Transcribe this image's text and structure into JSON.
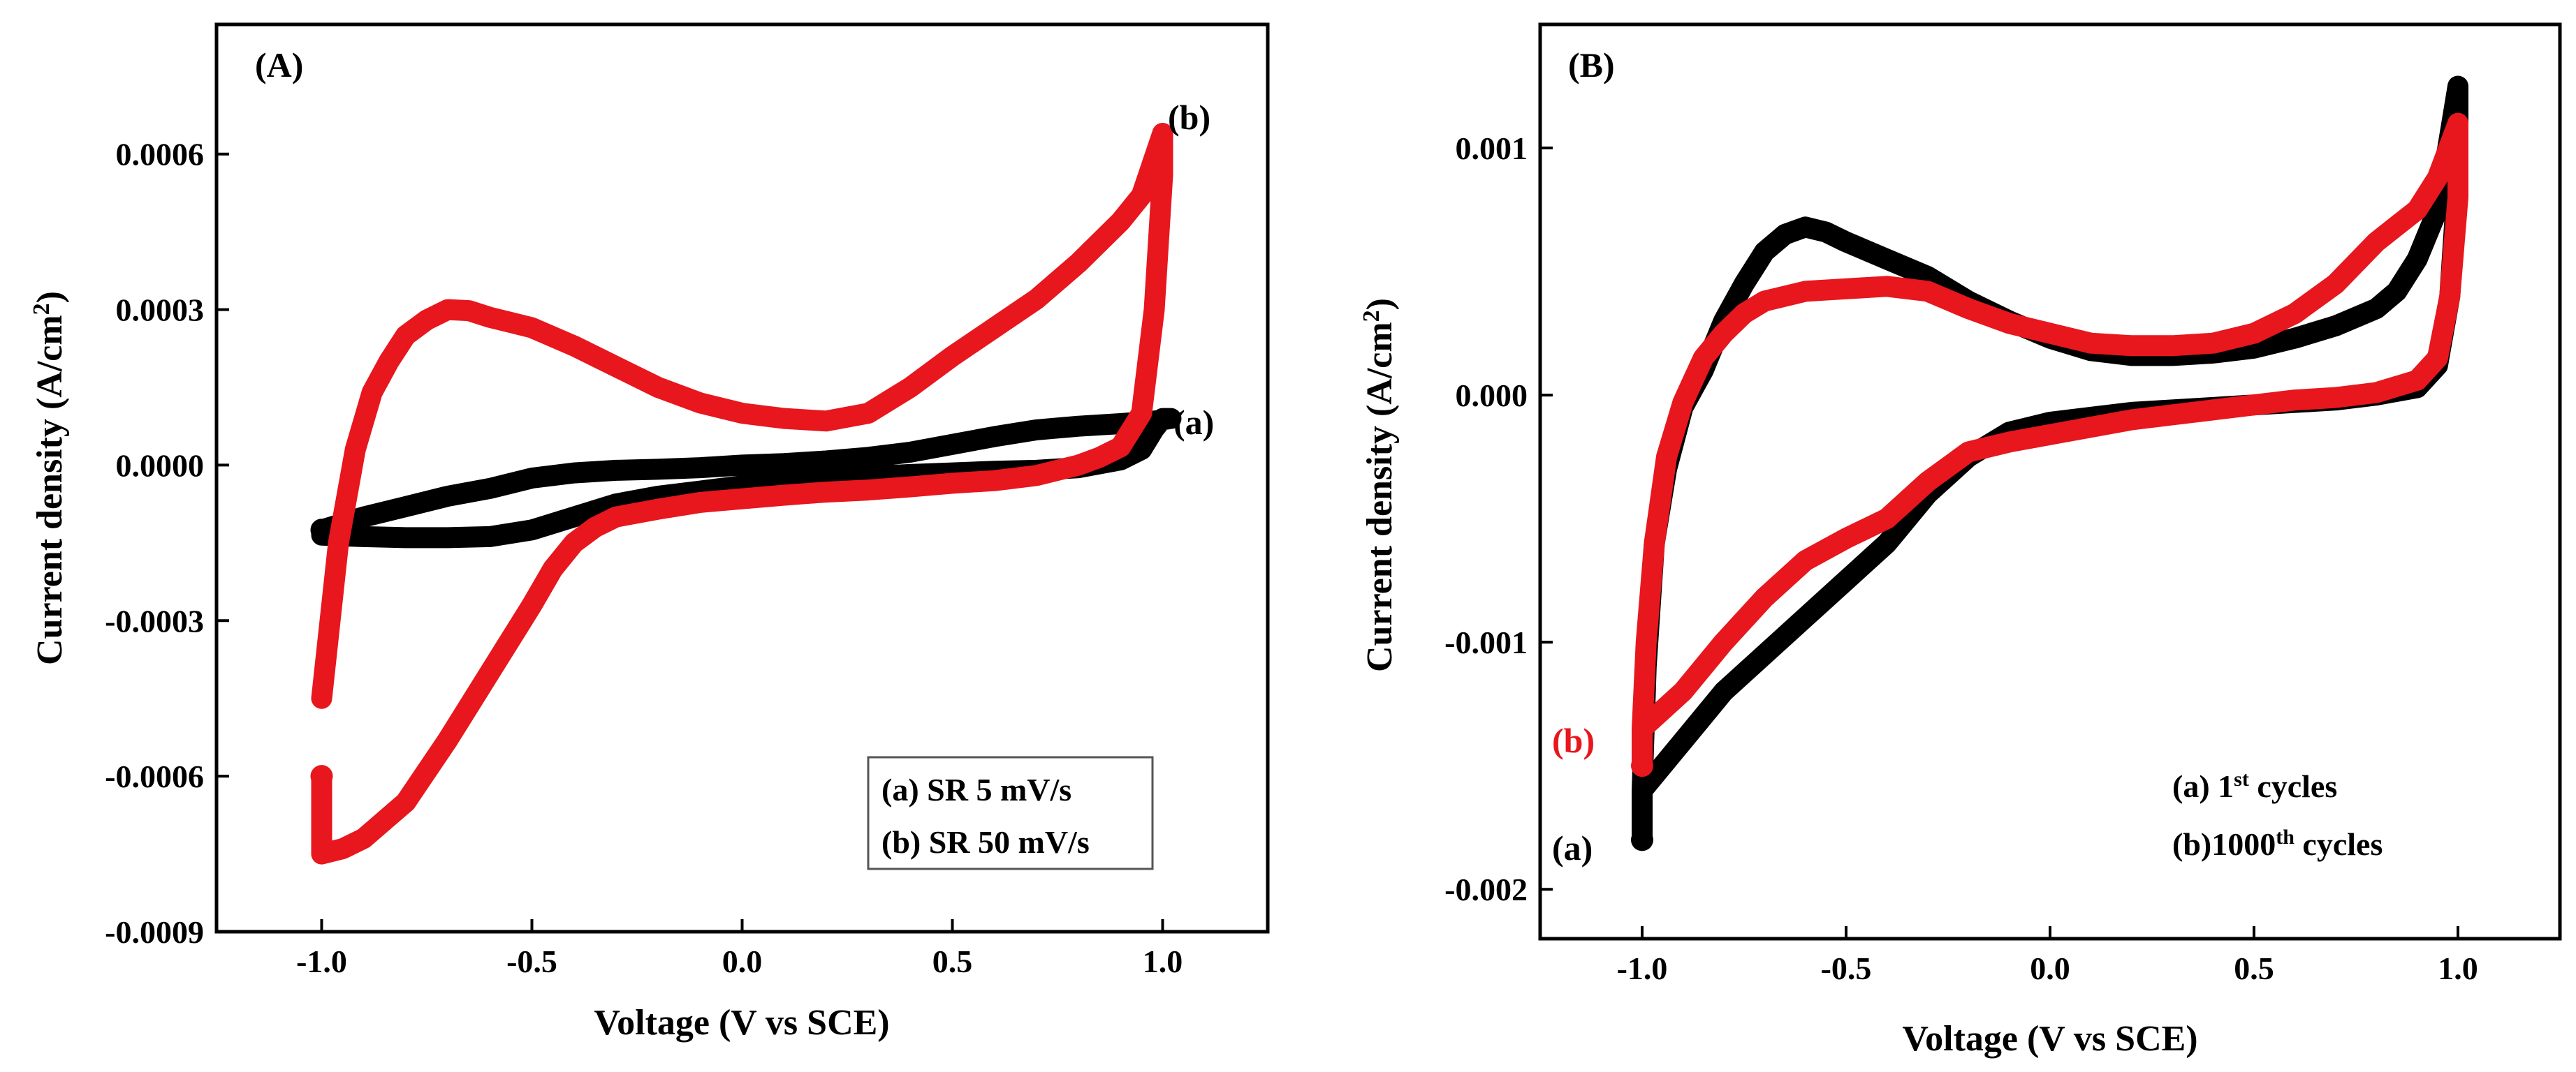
{
  "chart_data": [
    {
      "type": "line",
      "panel_label": "(A)",
      "xlabel": "Voltage (V vs SCE)",
      "ylabel": "Current density (A/cm²)",
      "xlim": [
        -1.25,
        1.25
      ],
      "ylim": [
        -0.0009,
        0.00085
      ],
      "x_ticks": [
        -1.0,
        -0.5,
        0.0,
        0.5,
        1.0
      ],
      "x_tick_labels": [
        "-1.0",
        "-0.5",
        "0.0",
        "0.5",
        "1.0"
      ],
      "y_ticks": [
        -0.0009,
        -0.0006,
        -0.0003,
        0.0,
        0.0003,
        0.0006
      ],
      "y_tick_labels": [
        "-0.0009",
        "-0.0006",
        "-0.0003",
        "0.0000",
        "0.0003",
        "0.0006"
      ],
      "legend": {
        "placement": "bottom-right",
        "entries": [
          "(a)  SR 5 mV/s",
          "(b) SR 50 mV/s"
        ]
      },
      "series": [
        {
          "label": "(a)",
          "color": "#000000",
          "x": [
            -1.0,
            -0.9,
            -0.8,
            -0.7,
            -0.6,
            -0.5,
            -0.4,
            -0.3,
            -0.2,
            -0.1,
            0.0,
            0.1,
            0.2,
            0.3,
            0.4,
            0.5,
            0.6,
            0.7,
            0.8,
            0.9,
            0.95,
            0.98,
            1.0,
            1.02,
            0.98,
            0.9,
            0.8,
            0.7,
            0.6,
            0.5,
            0.4,
            0.3,
            0.2,
            0.1,
            0.0,
            -0.1,
            -0.2,
            -0.3,
            -0.4,
            -0.5,
            -0.6,
            -0.7,
            -0.8,
            -0.9,
            -1.0
          ],
          "y": [
            -0.000135,
            -0.000138,
            -0.00014,
            -0.00014,
            -0.000138,
            -0.000125,
            -0.0001,
            -7.5e-05,
            -6e-05,
            -5e-05,
            -4e-05,
            -3.3e-05,
            -2.8e-05,
            -2.2e-05,
            -1.8e-05,
            -1.5e-05,
            -1.2e-05,
            -1e-05,
            -5e-06,
            1e-05,
            3e-05,
            7e-05,
            9e-05,
            9e-05,
            8.5e-05,
            8e-05,
            7.5e-05,
            6.8e-05,
            5.5e-05,
            4e-05,
            2.5e-05,
            1.5e-05,
            8e-06,
            3e-06,
            0.0,
            -5e-06,
            -8e-06,
            -1e-05,
            -1.5e-05,
            -2.5e-05,
            -4.5e-05,
            -6e-05,
            -8e-05,
            -0.0001,
            -0.000125
          ]
        },
        {
          "label": "(b)",
          "color": "#e8161d",
          "x": [
            -1.0,
            -0.96,
            -0.92,
            -0.88,
            -0.84,
            -0.8,
            -0.75,
            -0.7,
            -0.65,
            -0.6,
            -0.55,
            -0.5,
            -0.4,
            -0.3,
            -0.2,
            -0.1,
            0.0,
            0.1,
            0.2,
            0.3,
            0.4,
            0.5,
            0.6,
            0.7,
            0.8,
            0.9,
            0.95,
            1.0,
            1.0,
            0.98,
            0.95,
            0.9,
            0.85,
            0.8,
            0.7,
            0.6,
            0.5,
            0.4,
            0.3,
            0.2,
            0.1,
            0.0,
            -0.1,
            -0.2,
            -0.3,
            -0.35,
            -0.4,
            -0.45,
            -0.5,
            -0.6,
            -0.7,
            -0.8,
            -0.9,
            -0.95,
            -1.0,
            -1.0,
            -1.0
          ],
          "y": [
            -0.00045,
            -0.00015,
            3e-05,
            0.00014,
            0.0002,
            0.00025,
            0.00028,
            0.0003,
            0.000298,
            0.000285,
            0.000275,
            0.000265,
            0.00023,
            0.00019,
            0.00015,
            0.00012,
            0.0001,
            9e-05,
            8.5e-05,
            0.0001,
            0.00015,
            0.00021,
            0.000265,
            0.00032,
            0.00039,
            0.00047,
            0.00052,
            0.00064,
            0.00056,
            0.0003,
            0.0001,
            3.5e-05,
            1.5e-05,
            0.0,
            -2e-05,
            -3e-05,
            -3.5e-05,
            -4.2e-05,
            -4.8e-05,
            -5.2e-05,
            -5.8e-05,
            -6.5e-05,
            -7.2e-05,
            -8.5e-05,
            -0.0001,
            -0.00012,
            -0.00015,
            -0.0002,
            -0.00027,
            -0.0004,
            -0.00053,
            -0.00065,
            -0.00072,
            -0.00074,
            -0.00075,
            -0.0007,
            -0.0006
          ]
        }
      ]
    },
    {
      "type": "line",
      "panel_label": "(B)",
      "xlabel": "Voltage (V vs SCE)",
      "ylabel": "Current density (A/cm²)",
      "xlim": [
        -1.25,
        1.25
      ],
      "ylim": [
        -0.0022,
        0.0015
      ],
      "x_ticks": [
        -1.0,
        -0.5,
        0.0,
        0.5,
        1.0
      ],
      "x_tick_labels": [
        "-1.0",
        "-0.5",
        "0.0",
        "0.5",
        "1.0"
      ],
      "y_ticks": [
        -0.002,
        -0.001,
        0.0,
        0.001
      ],
      "y_tick_labels": [
        "-0.002",
        "-0.001",
        "0.000",
        "0.001"
      ],
      "legend": {
        "placement": "bottom-right",
        "entries": [
          {
            "prefix": "(a) 1",
            "sup": "st",
            "suffix": " cycles"
          },
          {
            "prefix": "(b)1000",
            "sup": "th",
            "suffix": " cycles"
          }
        ]
      },
      "series": [
        {
          "label": "(a)",
          "color": "#000000",
          "x": [
            -1.0,
            -0.99,
            -0.97,
            -0.94,
            -0.9,
            -0.85,
            -0.8,
            -0.75,
            -0.7,
            -0.65,
            -0.6,
            -0.55,
            -0.5,
            -0.4,
            -0.3,
            -0.2,
            -0.1,
            0.0,
            0.1,
            0.2,
            0.3,
            0.4,
            0.5,
            0.6,
            0.7,
            0.8,
            0.85,
            0.9,
            0.95,
            1.0,
            1.0,
            0.98,
            0.95,
            0.9,
            0.8,
            0.7,
            0.6,
            0.5,
            0.4,
            0.3,
            0.2,
            0.1,
            0.0,
            -0.1,
            -0.2,
            -0.3,
            -0.4,
            -0.5,
            -0.6,
            -0.7,
            -0.8,
            -0.9,
            -0.95,
            -1.0,
            -1.0
          ],
          "y": [
            -0.0016,
            -0.0011,
            -0.0006,
            -0.0003,
            -5e-05,
            0.0001,
            0.0003,
            0.00045,
            0.00058,
            0.00065,
            0.00068,
            0.00066,
            0.00062,
            0.00055,
            0.00048,
            0.00038,
            0.0003,
            0.00023,
            0.00018,
            0.00016,
            0.00016,
            0.00017,
            0.00019,
            0.00023,
            0.00028,
            0.00035,
            0.00042,
            0.00055,
            0.00075,
            0.00125,
            0.0009,
            0.0004,
            0.00012,
            3e-05,
            0.0,
            -2e-05,
            -3e-05,
            -4e-05,
            -5e-05,
            -6e-05,
            -7e-05,
            -9e-05,
            -0.00011,
            -0.00015,
            -0.00025,
            -0.0004,
            -0.0006,
            -0.00075,
            -0.0009,
            -0.00105,
            -0.0012,
            -0.0014,
            -0.0015,
            -0.0016,
            -0.0018
          ]
        },
        {
          "label": "(b)",
          "color": "#e8161d",
          "x": [
            -1.0,
            -0.99,
            -0.97,
            -0.94,
            -0.9,
            -0.85,
            -0.8,
            -0.75,
            -0.7,
            -0.6,
            -0.5,
            -0.4,
            -0.3,
            -0.2,
            -0.1,
            0.0,
            0.1,
            0.2,
            0.3,
            0.4,
            0.5,
            0.6,
            0.7,
            0.8,
            0.9,
            0.95,
            1.0,
            1.0,
            0.98,
            0.95,
            0.9,
            0.8,
            0.7,
            0.6,
            0.5,
            0.4,
            0.3,
            0.2,
            0.1,
            0.0,
            -0.1,
            -0.2,
            -0.3,
            -0.4,
            -0.5,
            -0.6,
            -0.7,
            -0.8,
            -0.9,
            -1.0,
            -1.0
          ],
          "y": [
            -0.00135,
            -0.001,
            -0.0006,
            -0.00025,
            -3e-05,
            0.00015,
            0.00025,
            0.00033,
            0.00038,
            0.00042,
            0.00043,
            0.00044,
            0.00042,
            0.00035,
            0.00029,
            0.00025,
            0.00021,
            0.0002,
            0.0002,
            0.00021,
            0.00025,
            0.00033,
            0.00045,
            0.00062,
            0.00075,
            0.00088,
            0.0011,
            0.0008,
            0.0004,
            0.00015,
            6e-05,
            1e-05,
            -1e-05,
            -2e-05,
            -4e-05,
            -6e-05,
            -8e-05,
            -0.0001,
            -0.00013,
            -0.00016,
            -0.00019,
            -0.00023,
            -0.00035,
            -0.0005,
            -0.00058,
            -0.00067,
            -0.00082,
            -0.001,
            -0.0012,
            -0.00135,
            -0.0015
          ]
        }
      ]
    }
  ]
}
